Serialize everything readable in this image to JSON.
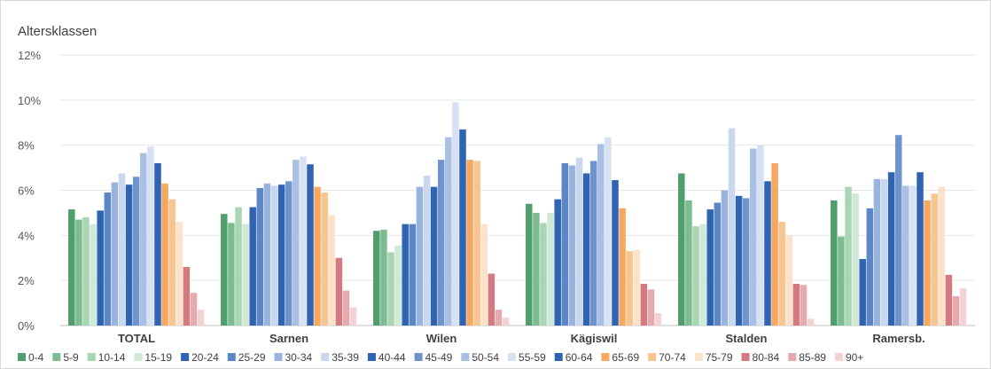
{
  "chart_data": {
    "type": "bar",
    "title": "Altersklassen",
    "xlabel": "",
    "ylabel": "",
    "ylim": [
      0,
      12
    ],
    "y_tick_values": [
      0,
      2,
      4,
      6,
      8,
      10,
      12
    ],
    "y_tick_labels": [
      "0%",
      "2%",
      "4%",
      "6%",
      "8%",
      "10%",
      "12%"
    ],
    "y_unit": "%",
    "grid": true,
    "legend_position": "bottom",
    "categories": [
      "TOTAL",
      "Sarnen",
      "Wilen",
      "Kägiswil",
      "Stalden",
      "Ramersb."
    ],
    "series": [
      {
        "name": "0-4",
        "color": "#4f9e6c",
        "values": [
          5.15,
          4.95,
          4.2,
          5.4,
          6.75,
          5.55
        ]
      },
      {
        "name": "5-9",
        "color": "#7dbb91",
        "values": [
          4.7,
          4.55,
          4.25,
          5.0,
          5.55,
          3.95
        ]
      },
      {
        "name": "10-14",
        "color": "#a8d5b4",
        "values": [
          4.8,
          5.25,
          3.25,
          4.55,
          4.4,
          6.15
        ]
      },
      {
        "name": "15-19",
        "color": "#cfe9d5",
        "values": [
          4.5,
          4.5,
          3.55,
          5.0,
          4.5,
          5.85
        ]
      },
      {
        "name": "20-24",
        "color": "#2f64b3",
        "values": [
          5.1,
          5.25,
          4.5,
          5.6,
          5.15,
          2.95
        ]
      },
      {
        "name": "25-29",
        "color": "#5b86c7",
        "values": [
          5.9,
          6.1,
          4.5,
          7.2,
          5.45,
          5.2
        ]
      },
      {
        "name": "30-34",
        "color": "#98b3dd",
        "values": [
          6.35,
          6.3,
          6.15,
          7.1,
          6.0,
          6.5
        ]
      },
      {
        "name": "35-39",
        "color": "#c9d7ef",
        "values": [
          6.75,
          6.2,
          6.65,
          7.45,
          8.75,
          6.5
        ]
      },
      {
        "name": "40-44",
        "color": "#2f64b3",
        "values": [
          6.25,
          6.25,
          6.15,
          6.75,
          5.75,
          6.8
        ]
      },
      {
        "name": "45-49",
        "color": "#6f93cd",
        "values": [
          6.6,
          6.4,
          7.35,
          7.3,
          5.65,
          8.45
        ]
      },
      {
        "name": "50-54",
        "color": "#a9c0e3",
        "values": [
          7.65,
          7.35,
          8.35,
          8.05,
          7.85,
          6.2
        ]
      },
      {
        "name": "55-59",
        "color": "#d6e1f3",
        "values": [
          7.95,
          7.5,
          9.9,
          8.35,
          8.0,
          6.2
        ]
      },
      {
        "name": "60-64",
        "color": "#2f64b3",
        "values": [
          7.2,
          7.15,
          8.7,
          6.45,
          6.4,
          6.8
        ]
      },
      {
        "name": "65-69",
        "color": "#f4a861",
        "values": [
          6.3,
          6.15,
          7.35,
          5.2,
          7.2,
          5.55
        ]
      },
      {
        "name": "70-74",
        "color": "#f8c48f",
        "values": [
          5.6,
          5.9,
          7.3,
          3.3,
          4.6,
          5.85
        ]
      },
      {
        "name": "75-79",
        "color": "#fce2c8",
        "values": [
          4.6,
          4.9,
          4.5,
          3.35,
          4.0,
          6.15
        ]
      },
      {
        "name": "80-84",
        "color": "#d27a80",
        "values": [
          2.6,
          3.0,
          2.3,
          1.85,
          1.85,
          2.25
        ]
      },
      {
        "name": "85-89",
        "color": "#e6a9ad",
        "values": [
          1.45,
          1.55,
          0.7,
          1.6,
          1.8,
          1.3
        ]
      },
      {
        "name": "90+",
        "color": "#f4d3d5",
        "values": [
          0.7,
          0.8,
          0.35,
          0.55,
          0.3,
          1.65
        ]
      }
    ]
  }
}
